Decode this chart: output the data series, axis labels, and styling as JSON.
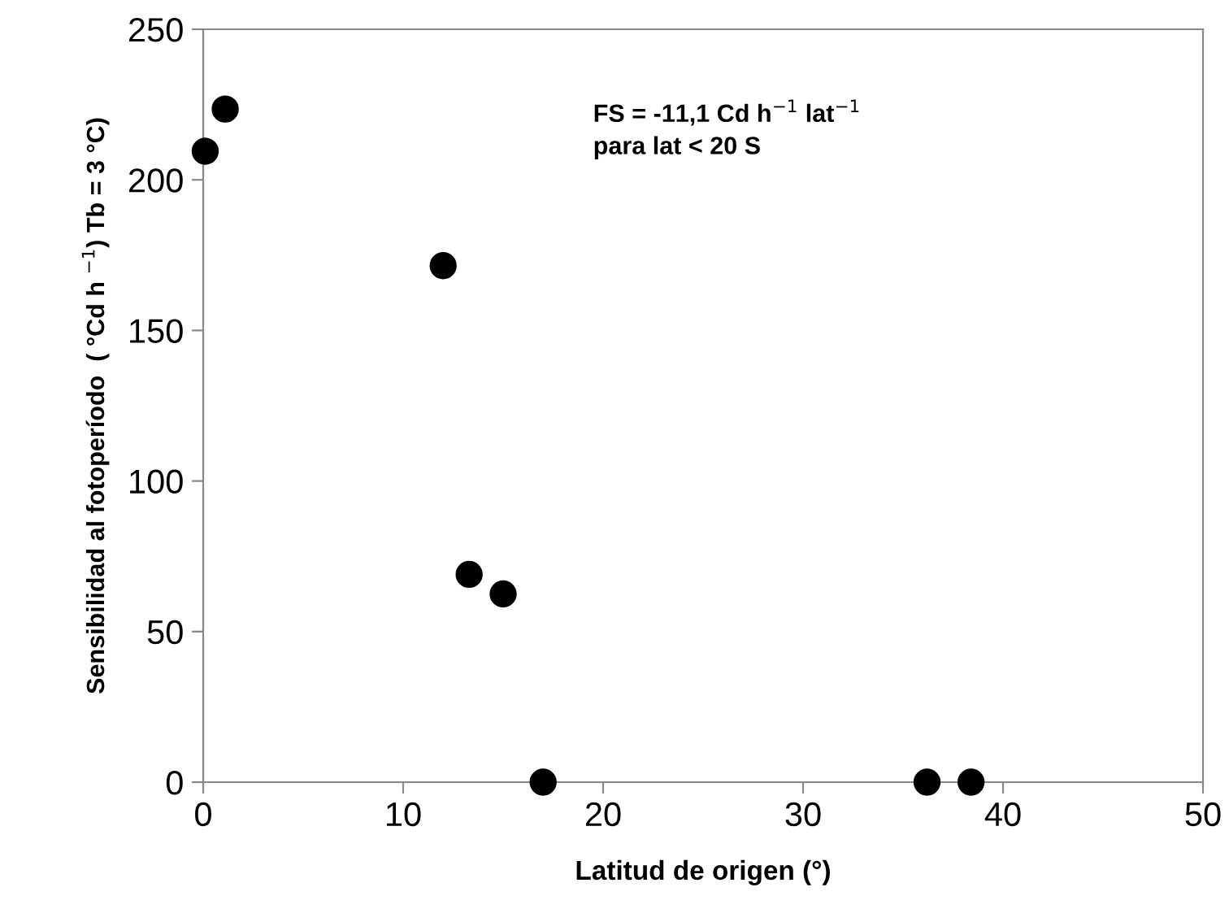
{
  "chart_data": {
    "type": "scatter",
    "xlabel": "Latitud de origen (°)",
    "ylabel": "Sensibilidad al fotoperíodo  ( °Cd h $^{−1}$) Tb = 3 °C)",
    "x": [
      0.1,
      1.1,
      12.0,
      13.3,
      15.0,
      17.0,
      36.2,
      38.4
    ],
    "series": [
      {
        "color": "#000000",
        "values": [
          209.5,
          223.5,
          171.5,
          69,
          62.5,
          0,
          0,
          0
        ]
      }
    ],
    "xlim": [
      0,
      50
    ],
    "xticks": [
      0,
      10,
      20,
      30,
      40,
      50
    ],
    "ylim": [
      0,
      250
    ],
    "yticks": [
      0,
      50,
      100,
      150,
      200,
      250
    ],
    "marker": "circle",
    "grid": false,
    "legend": false,
    "annotations": [
      "FS = -11,1 Cd h$^{−1}$ lat$^{−1}$\npara lat < 20 S"
    ]
  }
}
